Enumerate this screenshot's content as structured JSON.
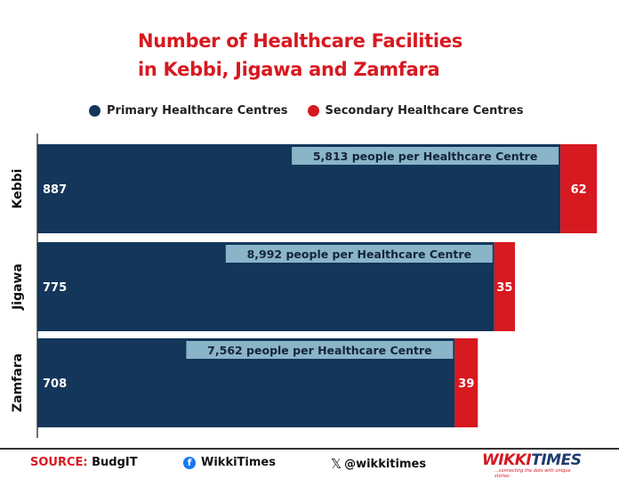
{
  "title_line1": "Number of Healthcare Facilities",
  "title_line2": "in Kebbi, Jigawa and Zamfara",
  "colors": {
    "primary": "#13365a",
    "secondary": "#d71920",
    "annotation_bg": "#8ab4c8",
    "title": "#d71920"
  },
  "chart_data": {
    "type": "bar",
    "orientation": "horizontal",
    "stacked": true,
    "categories": [
      "Kebbi",
      "Jigawa",
      "Zamfara"
    ],
    "series": [
      {
        "name": "Primary Healthcare Centres",
        "values": [
          887,
          775,
          708
        ]
      },
      {
        "name": "Secondary Healthcare Centres",
        "values": [
          62,
          35,
          39
        ]
      }
    ],
    "annotations": [
      "5,813 people per Healthcare Centre",
      "8,992 people per Healthcare Centre",
      "7,562 people per Healthcare Centre"
    ],
    "xlim": [
      0,
      980
    ],
    "legend_position": "top",
    "grid": false
  },
  "footer": {
    "source_label": "SOURCE:",
    "source_value": " BudgIT",
    "facebook": "WikkiTimes",
    "twitter": "@wikkitimes",
    "logo_w": "WIKKI",
    "logo_t": "TIMES",
    "logo_tagline": "...connecting the dots with unique stories"
  }
}
